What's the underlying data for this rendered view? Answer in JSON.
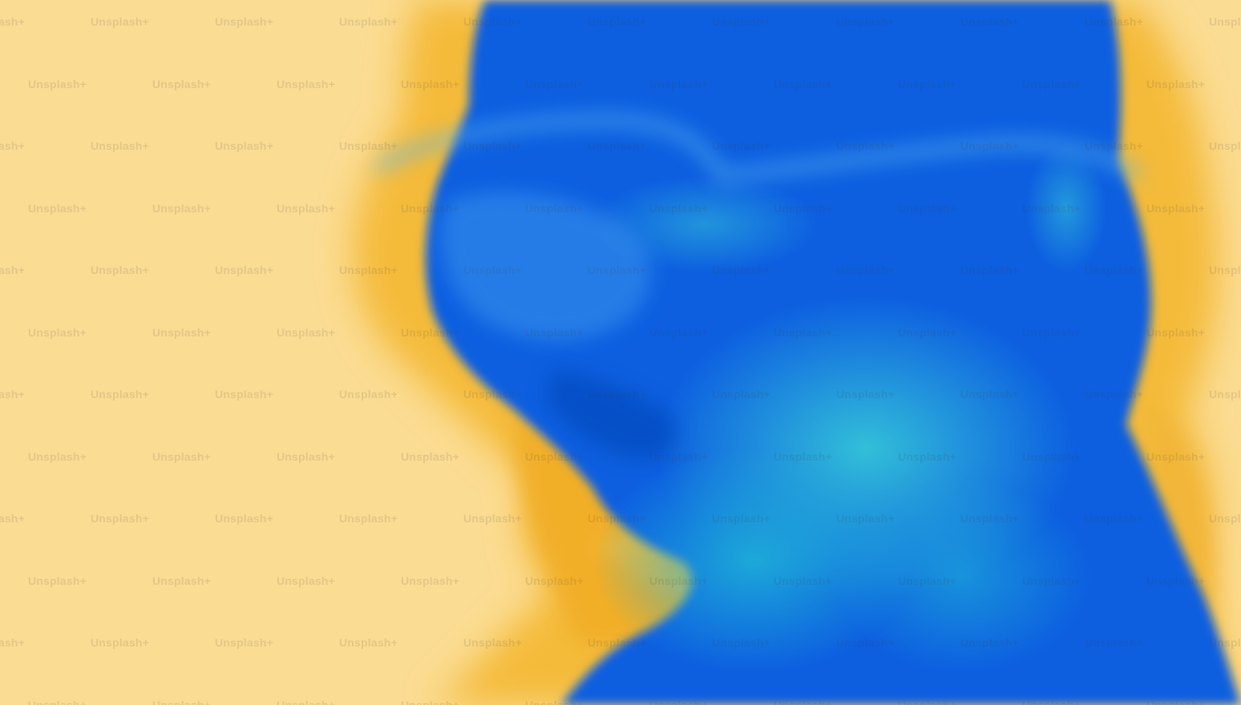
{
  "image": {
    "subject": "blurred silhouette of a head wearing glasses",
    "colors": {
      "background": "#fbdc93",
      "halo": "#f3b52c",
      "figure_dark": "#0a5fe0",
      "figure_mid": "#1a86e6",
      "figure_light": "#2ab3d6"
    }
  },
  "watermark": {
    "text": "Unsplash+"
  }
}
